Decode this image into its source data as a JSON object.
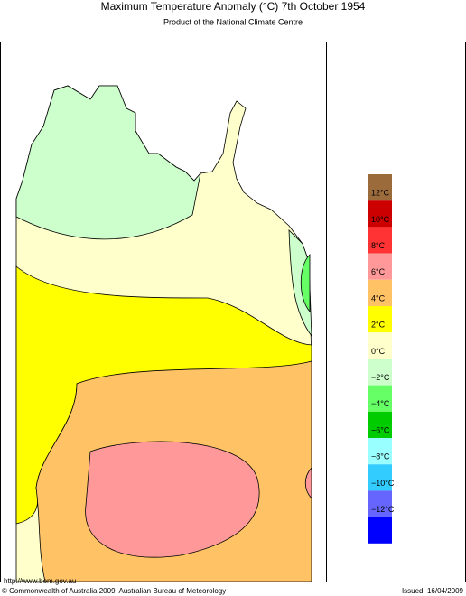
{
  "header": {
    "title": "Maximum Temperature Anomaly (°C)  7th October 1954",
    "subtitle": "Product of the National Climate Centre"
  },
  "legend": {
    "colors": [
      "#9c6b3c",
      "#cc0000",
      "#ff3333",
      "#ff9999",
      "#ffc366",
      "#ffff00",
      "#ffffcc",
      "#ccffcc",
      "#66ff66",
      "#00cc00",
      "#99ffff",
      "#33ccff",
      "#6666ff",
      "#0000ff"
    ],
    "labels": [
      "12°C",
      "10°C",
      "8°C",
      "6°C",
      "4°C",
      "2°C",
      "0°C",
      "−2°C",
      "−4°C",
      "−6°C",
      "−8°C",
      "−10°C",
      "−12°C"
    ]
  },
  "footer": {
    "url": "http://www.bom.gov.au",
    "copyright": "© Commonwealth of Australia 2009, Australian Bureau of Meteorology",
    "issued": "Issued: 16/04/2009"
  }
}
